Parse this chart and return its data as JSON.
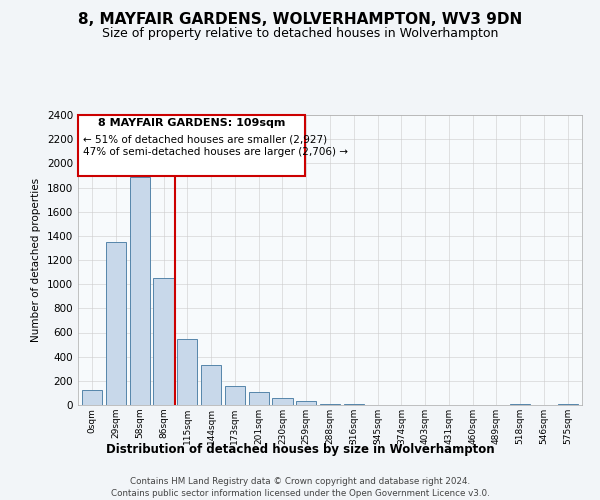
{
  "title": "8, MAYFAIR GARDENS, WOLVERHAMPTON, WV3 9DN",
  "subtitle": "Size of property relative to detached houses in Wolverhampton",
  "xlabel": "Distribution of detached houses by size in Wolverhampton",
  "ylabel": "Number of detached properties",
  "footer_line1": "Contains HM Land Registry data © Crown copyright and database right 2024.",
  "footer_line2": "Contains public sector information licensed under the Open Government Licence v3.0.",
  "bin_labels": [
    "0sqm",
    "29sqm",
    "58sqm",
    "86sqm",
    "115sqm",
    "144sqm",
    "173sqm",
    "201sqm",
    "230sqm",
    "259sqm",
    "288sqm",
    "316sqm",
    "345sqm",
    "374sqm",
    "403sqm",
    "431sqm",
    "460sqm",
    "489sqm",
    "518sqm",
    "546sqm",
    "575sqm"
  ],
  "bar_heights": [
    125,
    1350,
    1890,
    1050,
    550,
    335,
    160,
    110,
    60,
    30,
    10,
    5,
    2,
    1,
    0,
    0,
    0,
    0,
    5,
    0,
    5
  ],
  "bar_color": "#c8d8ea",
  "bar_edge_color": "#5585aa",
  "annotation_title": "8 MAYFAIR GARDENS: 109sqm",
  "annotation_line1": "← 51% of detached houses are smaller (2,927)",
  "annotation_line2": "47% of semi-detached houses are larger (2,706) →",
  "red_line_x": 3.5,
  "ylim": [
    0,
    2400
  ],
  "yticks": [
    0,
    200,
    400,
    600,
    800,
    1000,
    1200,
    1400,
    1600,
    1800,
    2000,
    2200,
    2400
  ],
  "bg_color": "#f2f5f8",
  "plot_bg_color": "#f7fafc",
  "grid_color": "#cccccc",
  "annotation_box_color": "#ffffff",
  "annotation_border_color": "#cc0000",
  "red_line_color": "#cc0000",
  "title_fontsize": 11,
  "subtitle_fontsize": 9
}
